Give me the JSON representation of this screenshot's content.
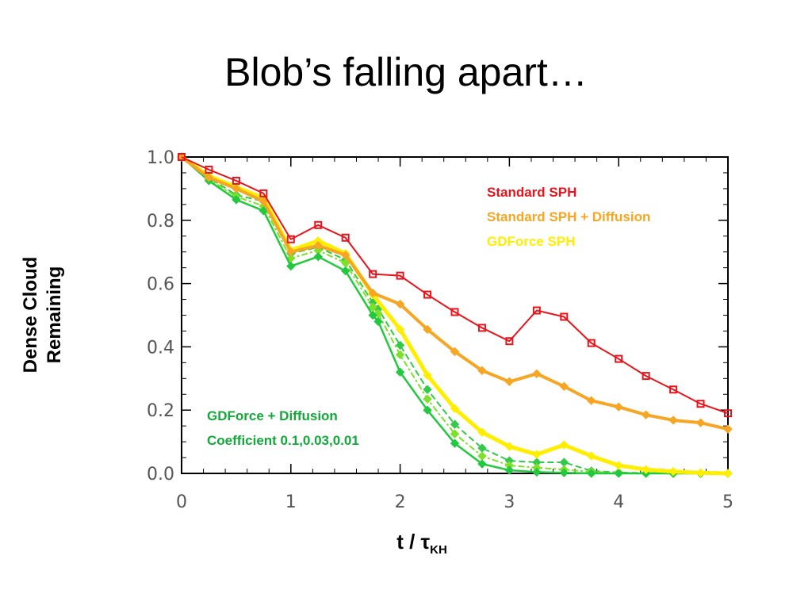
{
  "title": "Blob’s falling apart…",
  "chart_data": {
    "type": "line",
    "title": "",
    "ylabel_lines": [
      "Dense Cloud",
      "Remaining"
    ],
    "xlabel": {
      "main": "t / τ",
      "sub": "KH"
    },
    "xlim": [
      0,
      5
    ],
    "ylim": [
      0,
      1.0
    ],
    "x_ticks": [
      "0",
      "1",
      "2",
      "3",
      "4",
      "5"
    ],
    "y_ticks": [
      "0.0",
      "0.2",
      "0.4",
      "0.6",
      "0.8",
      "1.0"
    ],
    "grid": false,
    "legend": [
      {
        "text": "Standard SPH",
        "color": "#e8141c"
      },
      {
        "text": "Standard SPH + Diffusion",
        "color": "#f6a623"
      },
      {
        "text": "GDForce SPH",
        "color": "#ffee00"
      }
    ],
    "annotation": {
      "lines": [
        "GDForce + Diffusion",
        "Coefficient 0.1,0.03,0.01"
      ],
      "color": "#13a83a"
    },
    "series": [
      {
        "name": "Standard SPH",
        "color": "#e8141c",
        "marker": "square-open",
        "width": 2,
        "dash": "",
        "x": [
          0,
          0.25,
          0.5,
          0.75,
          1.0,
          1.25,
          1.5,
          1.75,
          2.0,
          2.25,
          2.5,
          2.75,
          3.0,
          3.25,
          3.5,
          3.75,
          4.0,
          4.25,
          4.5,
          4.75,
          5.0
        ],
        "y": [
          1.0,
          0.96,
          0.925,
          0.885,
          0.74,
          0.785,
          0.745,
          0.63,
          0.625,
          0.565,
          0.51,
          0.46,
          0.418,
          0.515,
          0.495,
          0.412,
          0.362,
          0.308,
          0.265,
          0.22,
          0.19
        ]
      },
      {
        "name": "Standard SPH + Diffusion",
        "color": "#f6a623",
        "marker": "diamond",
        "width": 4,
        "dash": "",
        "x": [
          0,
          0.25,
          0.5,
          0.75,
          1.0,
          1.25,
          1.5,
          1.75,
          2.0,
          2.25,
          2.5,
          2.75,
          3.0,
          3.25,
          3.5,
          3.75,
          4.0,
          4.25,
          4.5,
          4.75,
          5.0
        ],
        "y": [
          1.0,
          0.935,
          0.9,
          0.86,
          0.7,
          0.72,
          0.69,
          0.57,
          0.535,
          0.455,
          0.385,
          0.325,
          0.29,
          0.315,
          0.275,
          0.23,
          0.21,
          0.185,
          0.168,
          0.16,
          0.14
        ]
      },
      {
        "name": "GDForce SPH",
        "color": "#ffee00",
        "marker": "diamond",
        "width": 5,
        "dash": "",
        "x": [
          0,
          0.25,
          0.5,
          0.75,
          1.0,
          1.25,
          1.5,
          1.75,
          2.0,
          2.25,
          2.5,
          2.75,
          3.0,
          3.25,
          3.5,
          3.75,
          4.0,
          4.25,
          4.5,
          4.75,
          5.0
        ],
        "y": [
          1.0,
          0.94,
          0.905,
          0.87,
          0.705,
          0.735,
          0.695,
          0.565,
          0.455,
          0.31,
          0.205,
          0.13,
          0.085,
          0.06,
          0.09,
          0.055,
          0.025,
          0.012,
          0.006,
          0.002,
          0.0
        ]
      },
      {
        "name": "",
        "color": "#34c94a",
        "marker": "diamond",
        "width": 2,
        "dash": "8,4",
        "x": [
          0,
          0.25,
          0.5,
          0.75,
          1.0,
          1.25,
          1.5,
          1.75,
          1.8,
          2.0,
          2.25,
          2.5,
          2.75,
          3.0,
          3.25,
          3.5,
          3.75,
          4.0,
          4.25,
          4.5,
          4.75,
          5.0
        ],
        "y": [
          1.0,
          0.935,
          0.88,
          0.86,
          0.695,
          0.715,
          0.675,
          0.54,
          0.52,
          0.405,
          0.265,
          0.155,
          0.08,
          0.04,
          0.035,
          0.035,
          0.008,
          0.003,
          0.001,
          0.0,
          0.0,
          0.0
        ]
      },
      {
        "name": "",
        "color": "#7fe02a",
        "marker": "diamond",
        "width": 2,
        "dash": "3,3,8,3",
        "x": [
          0,
          0.25,
          0.5,
          0.75,
          1.0,
          1.25,
          1.5,
          1.75,
          1.8,
          2.0,
          2.25,
          2.5,
          2.75,
          3.0,
          3.25,
          3.5,
          3.75,
          4.0,
          4.25,
          4.5,
          4.75,
          5.0
        ],
        "y": [
          1.0,
          0.93,
          0.875,
          0.845,
          0.68,
          0.705,
          0.665,
          0.525,
          0.505,
          0.375,
          0.235,
          0.125,
          0.055,
          0.025,
          0.018,
          0.012,
          0.005,
          0.002,
          0.0,
          0.0,
          0.0,
          0.0
        ]
      },
      {
        "name": "",
        "color": "#22c93e",
        "marker": "diamond",
        "width": 2.5,
        "dash": "",
        "x": [
          0,
          0.25,
          0.5,
          0.75,
          1.0,
          1.25,
          1.5,
          1.75,
          1.8,
          2.0,
          2.25,
          2.5,
          2.75,
          3.0,
          3.25,
          3.5,
          3.75,
          4.0,
          4.25,
          4.5,
          4.75,
          5.0
        ],
        "y": [
          1.0,
          0.925,
          0.865,
          0.83,
          0.655,
          0.685,
          0.64,
          0.5,
          0.48,
          0.32,
          0.2,
          0.095,
          0.03,
          0.01,
          0.004,
          0.002,
          0.0,
          0.0,
          0.0,
          0.0,
          0.0,
          0.0
        ]
      }
    ]
  }
}
